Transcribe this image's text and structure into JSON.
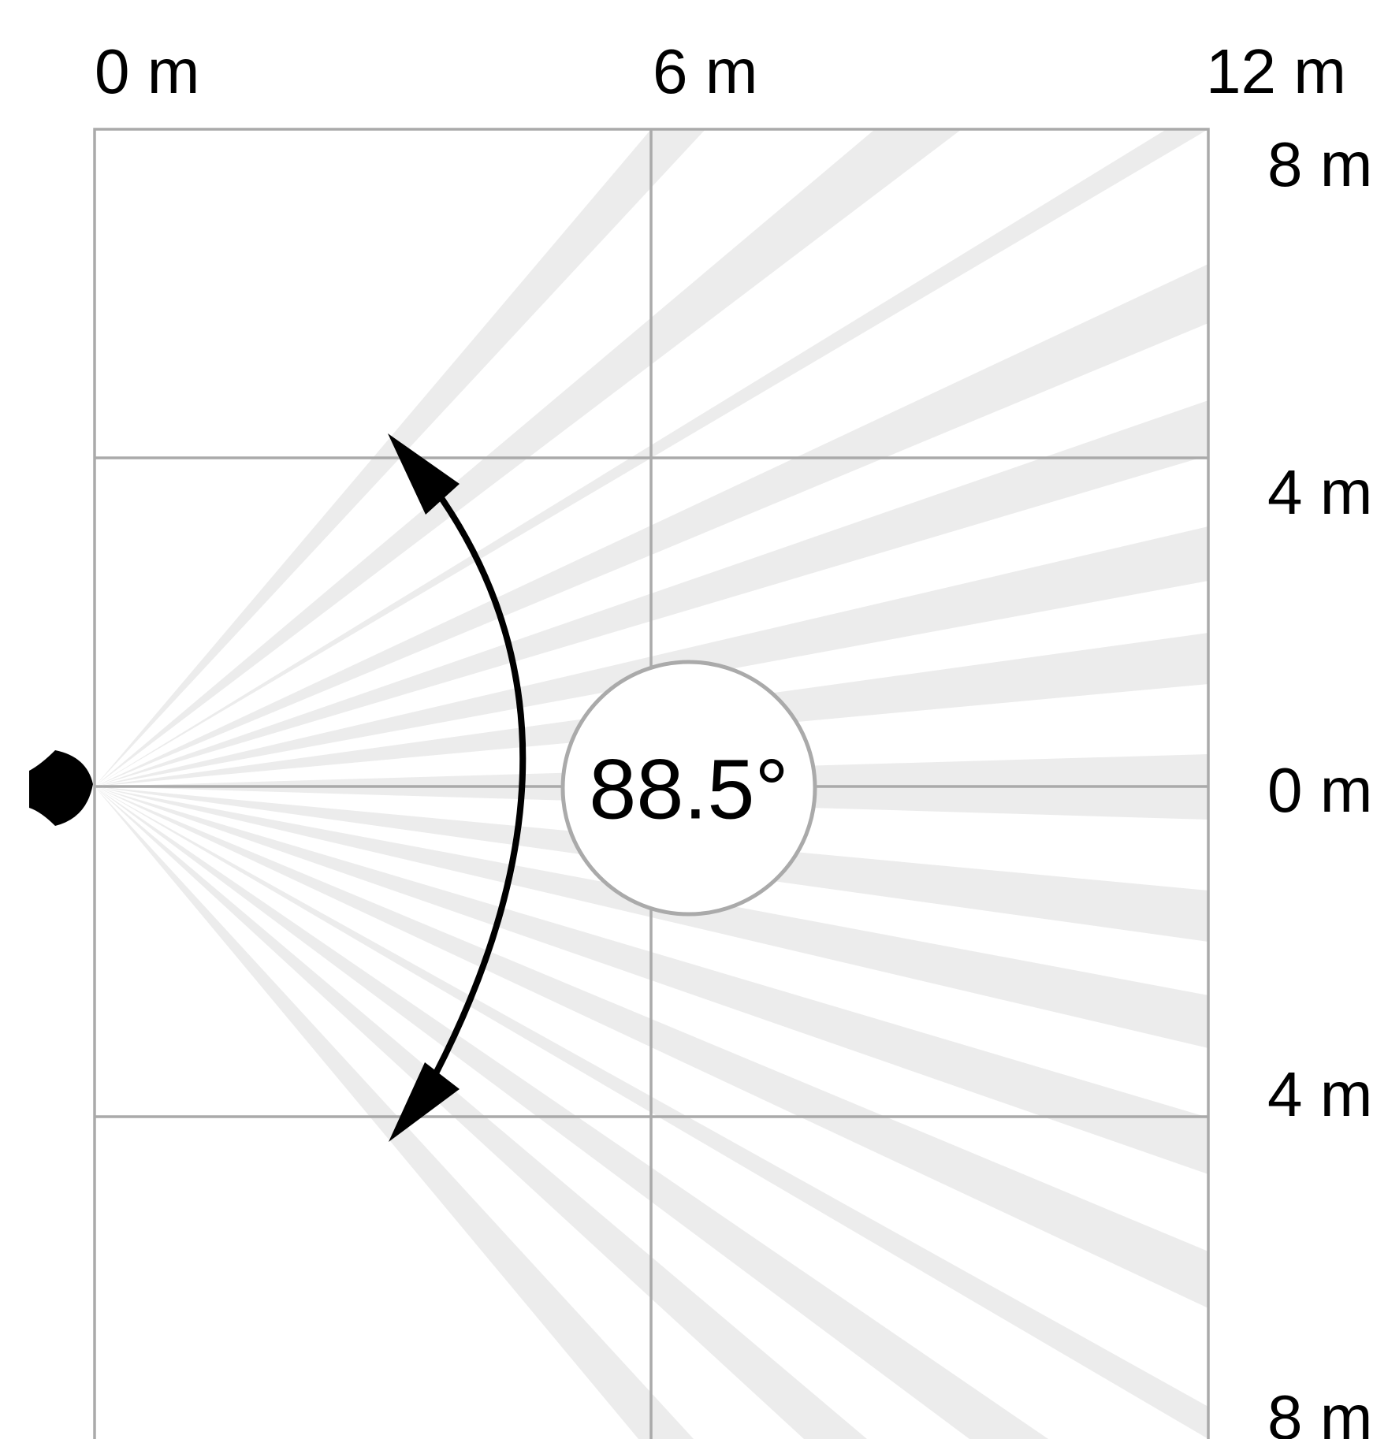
{
  "detection_zone": {
    "x_axis_labels": [
      "0 m",
      "6 m",
      "12 m"
    ],
    "y_axis_labels": [
      "8 m",
      "4 m",
      "0 m",
      "4 m",
      "8 m"
    ],
    "angle_label": "88.5°",
    "colors": {
      "beams": "#ececec",
      "grid": "#aaaaaa",
      "arrow": "#000000",
      "sensor": "#000000"
    },
    "icons": {
      "sensor": "detector-icon",
      "arrow": "double-headed-arc-arrow-icon"
    }
  }
}
